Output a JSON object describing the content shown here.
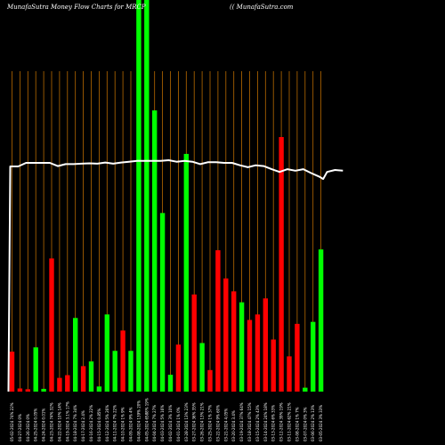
{
  "header": {
    "title": "MunafaSutra  Money Flow  Charts for MRCP",
    "site": "(( MunafaSutra.com"
  },
  "chart_data": {
    "type": "bar",
    "colors": {
      "up": "#00ff00",
      "down": "#ff0000",
      "line": "#ffffff",
      "grid": "#b86a00",
      "background": "#000000"
    },
    "ylim": [
      0,
      100
    ],
    "bars": [
      {
        "label": "05-02-2024 74% 22%",
        "value": 10.2,
        "color": "down"
      },
      {
        "label": "04-27-2024 0%",
        "value": 0.8,
        "color": "down"
      },
      {
        "label": "04-26-2024 0%",
        "value": 0.6,
        "color": "down"
      },
      {
        "label": "04-25-2024 0.05%",
        "value": 11.3,
        "color": "up"
      },
      {
        "label": "04-24-2024 0.01%",
        "value": 0.7,
        "color": "up"
      },
      {
        "label": "04-23-2024 74% 32%",
        "value": 34.0,
        "color": "down"
      },
      {
        "label": "04-22-2024 10% 14%",
        "value": 3.5,
        "color": "down"
      },
      {
        "label": "04-19-2024 3.1% 17%",
        "value": 4.2,
        "color": "down"
      },
      {
        "label": "04-18-2024 7% 34%",
        "value": 18.8,
        "color": "up"
      },
      {
        "label": "04-17-2024 2.4%",
        "value": 6.5,
        "color": "down"
      },
      {
        "label": "04-16-2024 2% 22%",
        "value": 7.7,
        "color": "up"
      },
      {
        "label": "04-15-2024 0.85%",
        "value": 1.3,
        "color": "up"
      },
      {
        "label": "04-12-2024 5% 26%",
        "value": 19.7,
        "color": "up"
      },
      {
        "label": "04-11-2024 7% 22%",
        "value": 10.4,
        "color": "up"
      },
      {
        "label": "04-10-2024 1% 9%",
        "value": 15.6,
        "color": "down"
      },
      {
        "label": "04-09-2024 9% 4%",
        "value": 10.4,
        "color": "up"
      },
      {
        "label": "04-08-2024 139% 20%",
        "value": 100.0,
        "color": "up"
      },
      {
        "label": "04-05-2024 6588% 19%",
        "value": 100.0,
        "color": "up"
      },
      {
        "label": "04-04-2024 7% 27%",
        "value": 71.8,
        "color": "up"
      },
      {
        "label": "04-03-2024 5% 16%",
        "value": 45.6,
        "color": "up"
      },
      {
        "label": "04-02-2024 3% 10%",
        "value": 4.3,
        "color": "up"
      },
      {
        "label": "04-01-2024 1% 0%",
        "value": 12.0,
        "color": "down"
      },
      {
        "label": "03-28-2024 13% 23%",
        "value": 60.7,
        "color": "up"
      },
      {
        "label": "03-27-2024 36% 35%",
        "value": 24.8,
        "color": "down"
      },
      {
        "label": "03-26-2024 13% 21%",
        "value": 12.4,
        "color": "up"
      },
      {
        "label": "03-25-2024 1% 37%",
        "value": 5.5,
        "color": "down"
      },
      {
        "label": "03-22-2024 9% 60%",
        "value": 36.1,
        "color": "down"
      },
      {
        "label": "03-21-2024 4.05%",
        "value": 28.9,
        "color": "down"
      },
      {
        "label": "03-20-2024 3.4%",
        "value": 25.6,
        "color": "down"
      },
      {
        "label": "03-19-2024 37% 64%",
        "value": 22.8,
        "color": "up"
      },
      {
        "label": "03-18-2024 47% 15%",
        "value": 18.3,
        "color": "down"
      },
      {
        "label": "03-15-2024 2% 43%",
        "value": 19.7,
        "color": "down"
      },
      {
        "label": "03-14-2024 24% 18%",
        "value": 23.8,
        "color": "down"
      },
      {
        "label": "03-13-2024 6% 33%",
        "value": 13.3,
        "color": "down"
      },
      {
        "label": "03-12-2024 39% 19%",
        "value": 65.0,
        "color": "down"
      },
      {
        "label": "03-11-2024 62% 21%",
        "value": 9.0,
        "color": "down"
      },
      {
        "label": "03-08-2024 1% 7%",
        "value": 17.3,
        "color": "down"
      },
      {
        "label": "03-07-2024 0% 3%",
        "value": 1.0,
        "color": "up"
      },
      {
        "label": "03-06-2024 2% 13%",
        "value": 17.8,
        "color": "up"
      },
      {
        "label": "03-05-2024 3% 33%",
        "value": 36.3,
        "color": "up"
      }
    ],
    "line": [
      0,
      57.5,
      57.5,
      58.4,
      58.4,
      58.4,
      58.4,
      57.6,
      58.1,
      58.1,
      58.2,
      58.3,
      58.2,
      58.5,
      58.2,
      58.5,
      58.7,
      58.9,
      58.9,
      58.9,
      58.9,
      59.1,
      58.7,
      58.9,
      58.7,
      58.1,
      58.6,
      58.6,
      58.4,
      58.4,
      57.8,
      57.3,
      57.8,
      57.6,
      56.8,
      56.1,
      56.8,
      56.4,
      56.8,
      55.8,
      54.9,
      54.3,
      56.1,
      56.6,
      56.4
    ],
    "line_x": [
      0,
      0,
      1,
      2,
      3,
      4,
      5,
      6,
      7,
      8,
      9,
      10,
      11,
      12,
      13,
      14,
      15,
      16,
      17,
      18,
      19,
      20,
      21,
      22,
      23,
      24,
      25,
      26,
      27,
      28,
      29,
      30,
      31,
      32,
      33,
      34,
      35,
      36,
      37,
      38,
      39,
      39.5,
      40,
      41,
      42
    ],
    "grid": "vertical"
  }
}
